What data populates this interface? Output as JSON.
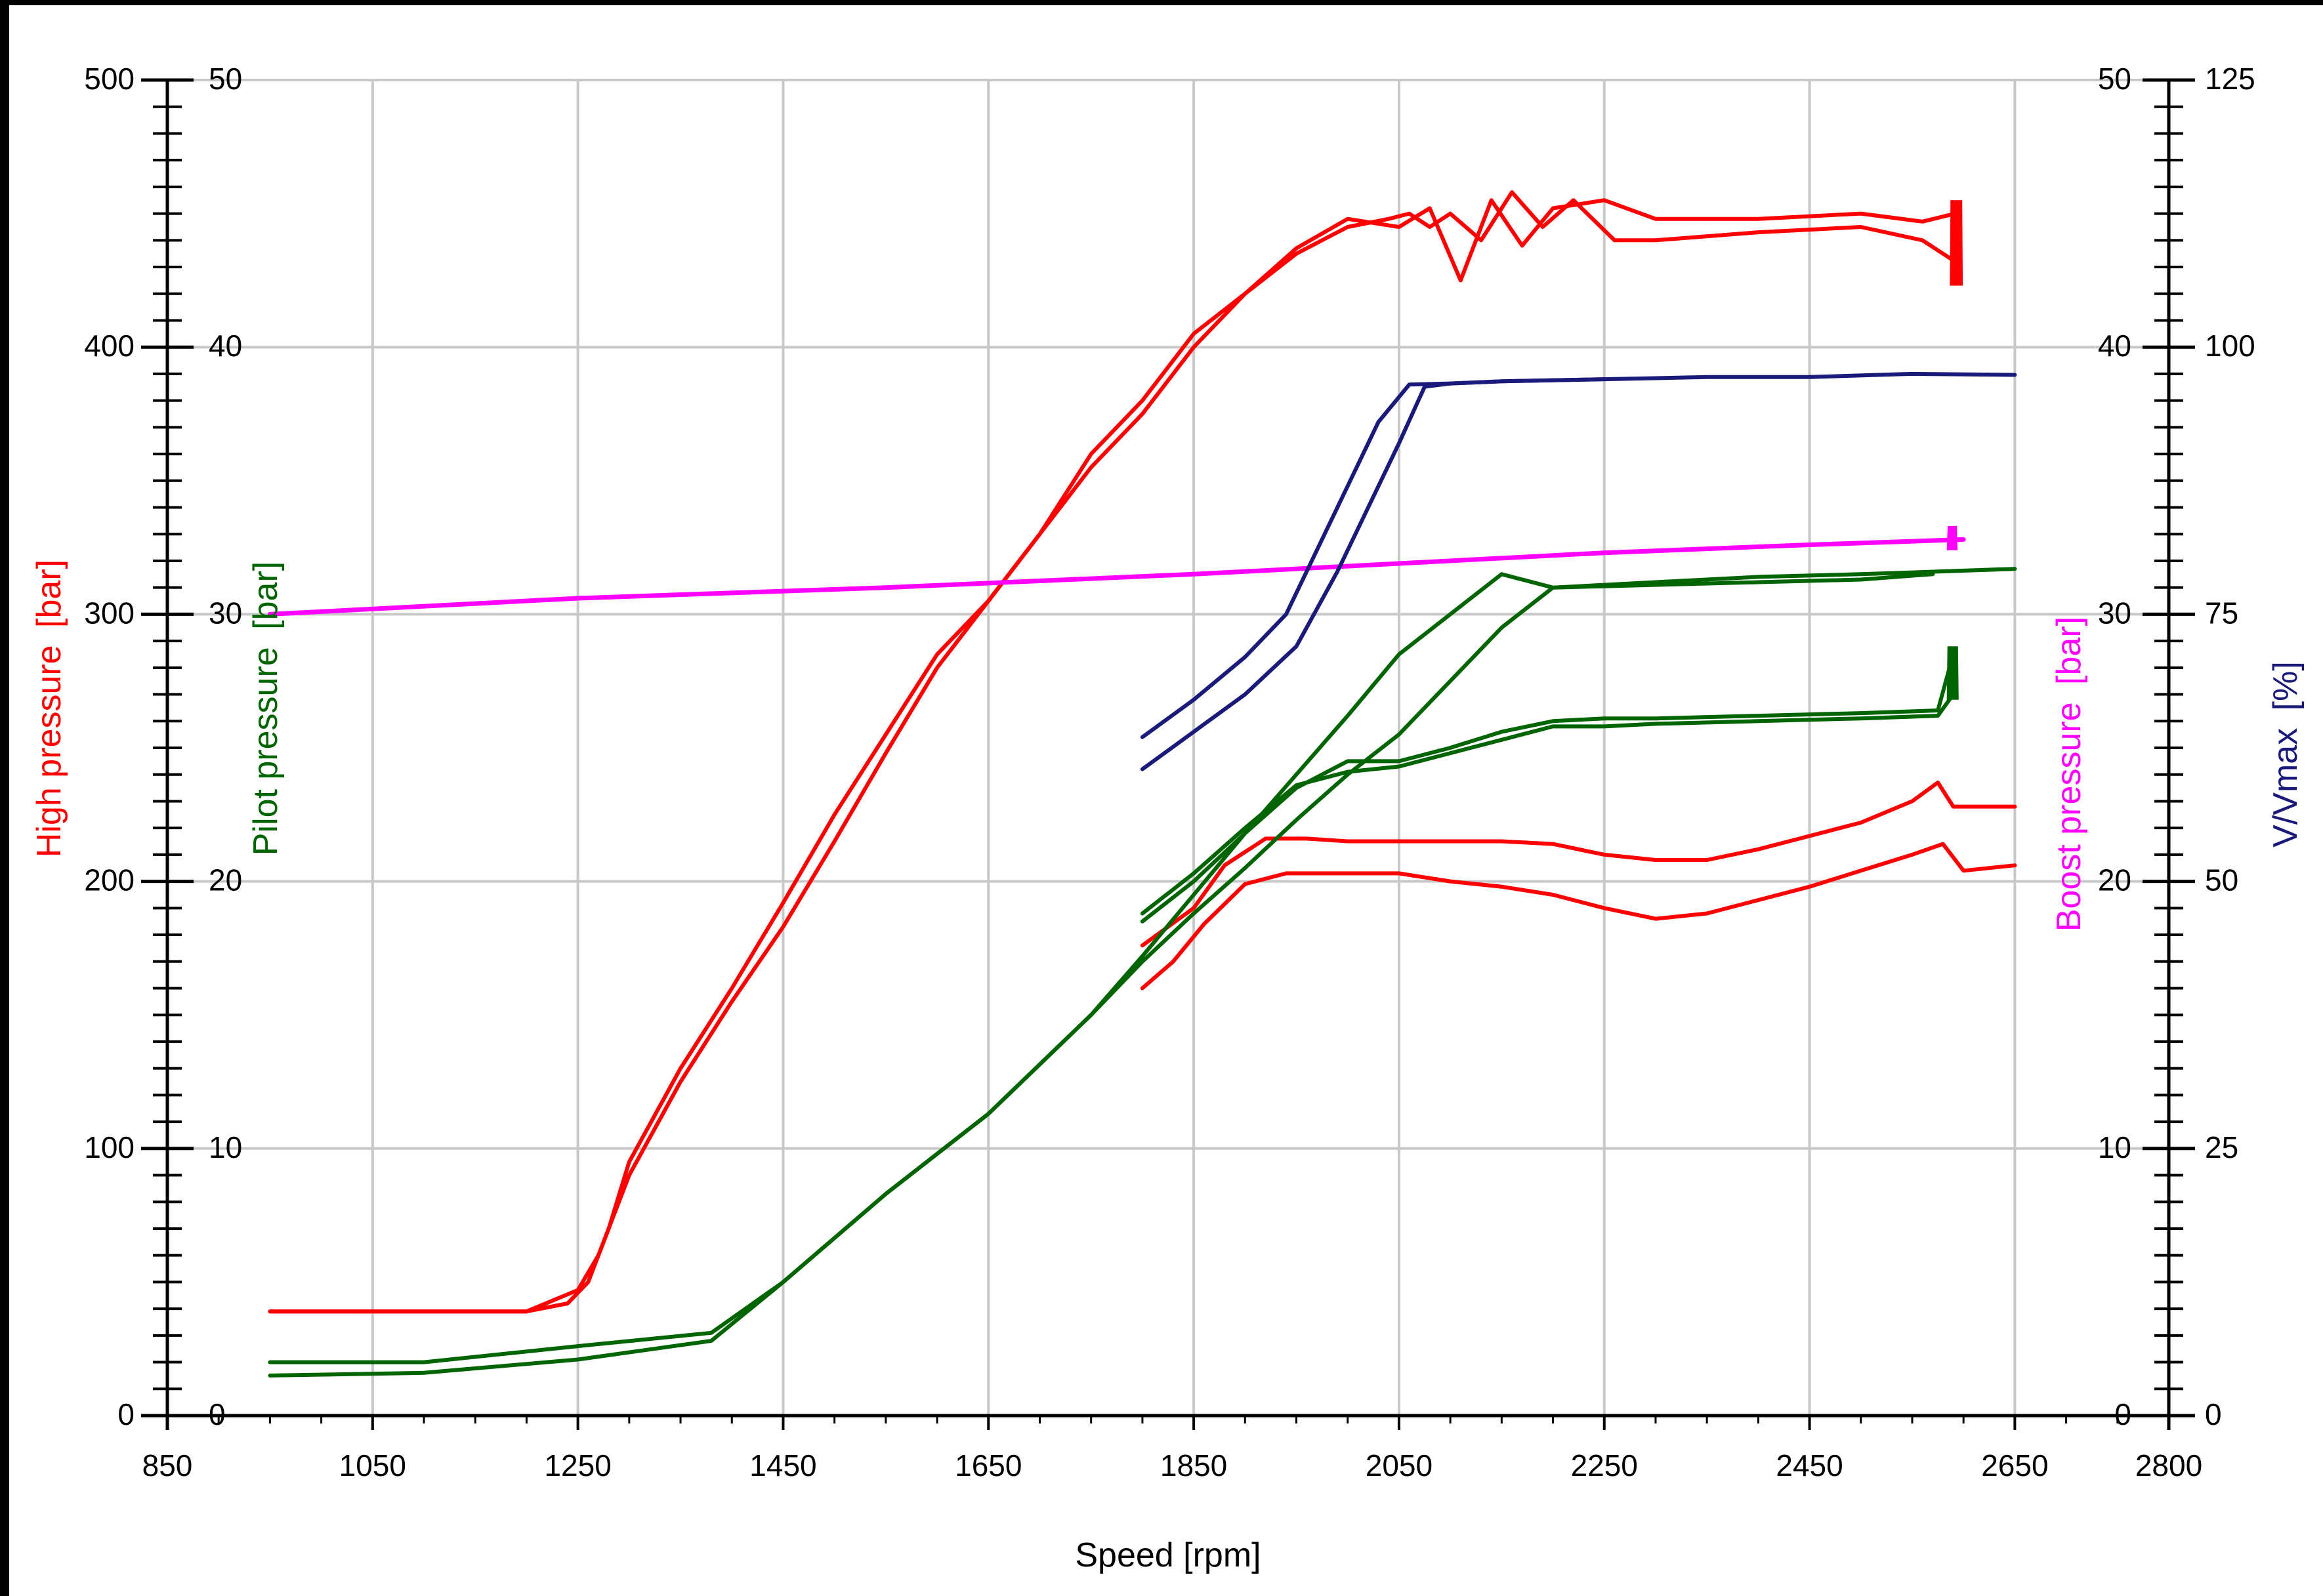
{
  "chart_data": {
    "type": "line",
    "x_axis": {
      "title": "Speed [rpm]",
      "range": [
        850,
        2800
      ],
      "ticks": [
        "850",
        "1050",
        "1250",
        "1450",
        "1650",
        "1850",
        "2050",
        "2250",
        "2450",
        "2650",
        "2800"
      ]
    },
    "y_axes": [
      {
        "id": "high",
        "title_main": "High pressure",
        "title_unit": "[bar]",
        "color": "#ff0000",
        "range": [
          0,
          500
        ],
        "ticks": [
          "0",
          "100",
          "200",
          "300",
          "400",
          "500"
        ],
        "side": "left-outer"
      },
      {
        "id": "pilot",
        "title_main": "Pilot pressure",
        "title_unit": "[bar]",
        "color": "#006400",
        "range": [
          0,
          50
        ],
        "ticks": [
          "0",
          "10",
          "20",
          "30",
          "40",
          "50"
        ],
        "side": "left-inner"
      },
      {
        "id": "boost",
        "title_main": "Boost pressure",
        "title_unit": "[bar]",
        "color": "#ff00ff",
        "range": [
          0,
          50
        ],
        "ticks": [
          "0",
          "10",
          "20",
          "30",
          "40",
          "50"
        ],
        "side": "right-inner"
      },
      {
        "id": "vvmax",
        "title_main": "V/Vmax",
        "title_unit": "[%]",
        "color": "#1a1a7a",
        "range": [
          0,
          125
        ],
        "ticks": [
          "0",
          "25",
          "50",
          "75",
          "100",
          "125"
        ],
        "side": "right-outer"
      }
    ],
    "grid": true,
    "series": [
      {
        "axis": "high",
        "color": "#ff0000",
        "kind": "high_up",
        "x": [
          950,
          1200,
          1240,
          1260,
          1280,
          1300,
          1350,
          1400,
          1450,
          1500,
          1550,
          1600,
          1650,
          1700,
          1750,
          1800,
          1850,
          1900,
          1950,
          2000,
          2040,
          2060,
          2080,
          2100,
          2130,
          2160,
          2190,
          2220,
          2260,
          2300,
          2400,
          2500,
          2560,
          2592
        ],
        "y": [
          39,
          39,
          42,
          50,
          70,
          95,
          130,
          160,
          192,
          225,
          255,
          285,
          305,
          330,
          360,
          380,
          405,
          420,
          435,
          445,
          448,
          450,
          445,
          450,
          440,
          458,
          445,
          455,
          440,
          440,
          443,
          445,
          440,
          432
        ]
      },
      {
        "axis": "high",
        "color": "#ff0000",
        "kind": "high_down",
        "x": [
          950,
          1200,
          1250,
          1270,
          1300,
          1350,
          1400,
          1450,
          1500,
          1550,
          1600,
          1650,
          1700,
          1750,
          1800,
          1850,
          1900,
          1950,
          2000,
          2050,
          2080,
          2110,
          2140,
          2170,
          2200,
          2250,
          2300,
          2400,
          2500,
          2560,
          2592
        ],
        "y": [
          39,
          39,
          47,
          60,
          90,
          125,
          155,
          183,
          215,
          248,
          280,
          305,
          330,
          355,
          375,
          400,
          420,
          437,
          448,
          445,
          452,
          425,
          455,
          438,
          452,
          455,
          448,
          448,
          450,
          447,
          450
        ]
      },
      {
        "axis": "high",
        "color": "#ff0000",
        "kind": "high_upper_branch",
        "x": [
          1800,
          1850,
          1880,
          1920,
          1960,
          2000,
          2050,
          2100,
          2150,
          2200,
          2250,
          2300,
          2350,
          2400,
          2450,
          2500,
          2550,
          2575,
          2590,
          2650
        ],
        "y": [
          176,
          190,
          206,
          216,
          216,
          215,
          215,
          215,
          215,
          214,
          210,
          208,
          208,
          212,
          217,
          222,
          230,
          237,
          228,
          228
        ]
      },
      {
        "axis": "high",
        "color": "#ff0000",
        "kind": "high_lower_branch",
        "x": [
          1800,
          1830,
          1860,
          1900,
          1940,
          2000,
          2050,
          2100,
          2150,
          2200,
          2250,
          2300,
          2350,
          2400,
          2450,
          2500,
          2550,
          2580,
          2600,
          2650
        ],
        "y": [
          160,
          170,
          184,
          199,
          203,
          203,
          203,
          200,
          198,
          195,
          190,
          186,
          188,
          193,
          198,
          204,
          210,
          214,
          204,
          206
        ]
      },
      {
        "axis": "pilot",
        "color": "#006400",
        "kind": "pilot_a",
        "x": [
          950,
          1100,
          1250,
          1380,
          1450,
          1550,
          1650,
          1750,
          1800,
          1850,
          1900,
          1950,
          2000,
          2050,
          2100,
          2150,
          2200,
          2300,
          2400,
          2500,
          2650
        ],
        "y": [
          2.0,
          2.0,
          2.6,
          3.1,
          5.0,
          8.3,
          11.3,
          15.0,
          17.2,
          19.5,
          21.8,
          24.0,
          26.2,
          28.5,
          30.0,
          31.5,
          31.0,
          31.2,
          31.4,
          31.5,
          31.7
        ]
      },
      {
        "axis": "pilot",
        "color": "#006400",
        "kind": "pilot_b",
        "x": [
          950,
          1100,
          1250,
          1380,
          1450,
          1550,
          1650,
          1750,
          1800,
          1850,
          1900,
          1950,
          2000,
          2050,
          2100,
          2150,
          2200,
          2300,
          2400,
          2500,
          2570
        ],
        "y": [
          1.5,
          1.6,
          2.1,
          2.8,
          5.0,
          8.3,
          11.3,
          15.0,
          17.0,
          18.8,
          20.5,
          22.3,
          24.0,
          25.5,
          27.5,
          29.5,
          31.0,
          31.1,
          31.2,
          31.3,
          31.5
        ]
      },
      {
        "axis": "pilot",
        "color": "#006400",
        "kind": "pilot_upper_branch",
        "x": [
          1800,
          1850,
          1900,
          1950,
          2000,
          2050,
          2100,
          2150,
          2200,
          2250,
          2300,
          2400,
          2500,
          2575,
          2590
        ],
        "y": [
          18.5,
          20.0,
          21.8,
          23.5,
          24.5,
          24.5,
          25.0,
          25.6,
          26.0,
          26.1,
          26.1,
          26.2,
          26.3,
          26.4,
          28.5
        ]
      },
      {
        "axis": "pilot",
        "color": "#006400",
        "kind": "pilot_lower_branch",
        "x": [
          1800,
          1850,
          1900,
          1950,
          2000,
          2050,
          2100,
          2150,
          2200,
          2250,
          2300,
          2400,
          2500,
          2575,
          2590
        ],
        "y": [
          18.8,
          20.3,
          22.0,
          23.6,
          24.1,
          24.3,
          24.8,
          25.3,
          25.8,
          25.8,
          25.9,
          26.0,
          26.1,
          26.2,
          27.0
        ]
      },
      {
        "axis": "boost",
        "color": "#ff00ff",
        "kind": "boost",
        "x": [
          950,
          1250,
          1550,
          1850,
          2050,
          2250,
          2450,
          2600
        ],
        "y": [
          30.0,
          30.6,
          31.0,
          31.5,
          31.9,
          32.3,
          32.6,
          32.8
        ]
      },
      {
        "axis": "vvmax",
        "color": "#1a1a7a",
        "kind": "vv_upper",
        "x": [
          1800,
          1850,
          1900,
          1940,
          1970,
          2000,
          2030,
          2060,
          2100,
          2150,
          2250,
          2350,
          2450,
          2550,
          2650
        ],
        "y": [
          63.5,
          67,
          71,
          75,
          81,
          87,
          93,
          96.5,
          96.6,
          96.8,
          97.0,
          97.2,
          97.2,
          97.5,
          97.4
        ]
      },
      {
        "axis": "vvmax",
        "color": "#1a1a7a",
        "kind": "vv_lower",
        "x": [
          1800,
          1850,
          1900,
          1950,
          1990,
          2020,
          2050,
          2075,
          2100,
          2150,
          2250
        ],
        "y": [
          60.5,
          64,
          67.5,
          72,
          79,
          85,
          91,
          96.3,
          96.6,
          96.8,
          97.0
        ]
      }
    ]
  }
}
